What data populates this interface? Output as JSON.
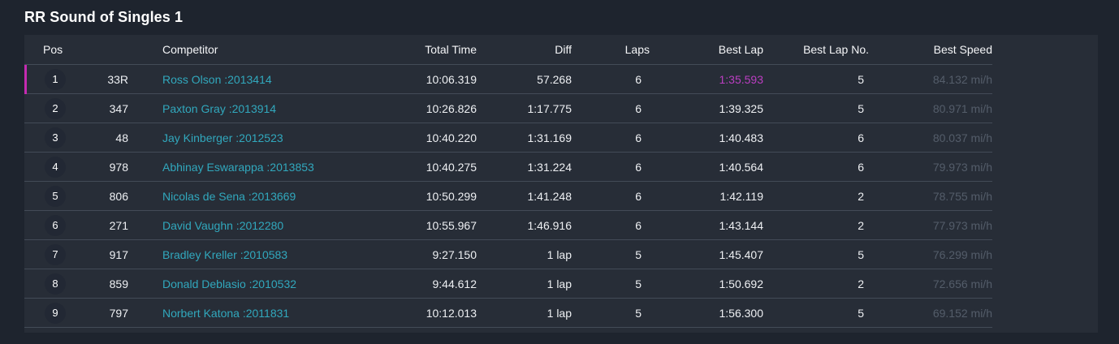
{
  "title": "RR Sound of Singles 1",
  "colors": {
    "page_background": "#1e242e",
    "panel_background": "#272d37",
    "row_divider": "#434b57",
    "leader_indicator": "#c52bb1",
    "best_lap_highlight": "#bb3ec2",
    "competitor_link": "#31a8bd",
    "muted_speed": "#545d6a"
  },
  "table": {
    "columns": [
      {
        "key": "pos",
        "label": "Pos"
      },
      {
        "key": "num",
        "label": ""
      },
      {
        "key": "competitor",
        "label": "Competitor"
      },
      {
        "key": "total_time",
        "label": "Total Time"
      },
      {
        "key": "diff",
        "label": "Diff"
      },
      {
        "key": "laps",
        "label": "Laps"
      },
      {
        "key": "best_lap",
        "label": "Best Lap"
      },
      {
        "key": "best_lap_no",
        "label": "Best Lap No."
      },
      {
        "key": "best_speed",
        "label": "Best Speed"
      }
    ],
    "rows": [
      {
        "pos": "1",
        "num": "33R",
        "competitor": "Ross Olson :2013414",
        "total_time": "10:06.319",
        "diff": "57.268",
        "laps": "6",
        "best_lap": "1:35.593",
        "best_lap_no": "5",
        "best_speed": "84.132 mi/h",
        "highlight": true
      },
      {
        "pos": "2",
        "num": "347",
        "competitor": "Paxton Gray :2013914",
        "total_time": "10:26.826",
        "diff": "1:17.775",
        "laps": "6",
        "best_lap": "1:39.325",
        "best_lap_no": "5",
        "best_speed": "80.971 mi/h",
        "highlight": false
      },
      {
        "pos": "3",
        "num": "48",
        "competitor": "Jay Kinberger :2012523",
        "total_time": "10:40.220",
        "diff": "1:31.169",
        "laps": "6",
        "best_lap": "1:40.483",
        "best_lap_no": "6",
        "best_speed": "80.037 mi/h",
        "highlight": false
      },
      {
        "pos": "4",
        "num": "978",
        "competitor": "Abhinay Eswarappa :2013853",
        "total_time": "10:40.275",
        "diff": "1:31.224",
        "laps": "6",
        "best_lap": "1:40.564",
        "best_lap_no": "6",
        "best_speed": "79.973 mi/h",
        "highlight": false
      },
      {
        "pos": "5",
        "num": "806",
        "competitor": "Nicolas de Sena :2013669",
        "total_time": "10:50.299",
        "diff": "1:41.248",
        "laps": "6",
        "best_lap": "1:42.119",
        "best_lap_no": "2",
        "best_speed": "78.755 mi/h",
        "highlight": false
      },
      {
        "pos": "6",
        "num": "271",
        "competitor": "David Vaughn :2012280",
        "total_time": "10:55.967",
        "diff": "1:46.916",
        "laps": "6",
        "best_lap": "1:43.144",
        "best_lap_no": "2",
        "best_speed": "77.973 mi/h",
        "highlight": false
      },
      {
        "pos": "7",
        "num": "917",
        "competitor": "Bradley Kreller :2010583",
        "total_time": "9:27.150",
        "diff": "1 lap",
        "laps": "5",
        "best_lap": "1:45.407",
        "best_lap_no": "5",
        "best_speed": "76.299 mi/h",
        "highlight": false
      },
      {
        "pos": "8",
        "num": "859",
        "competitor": "Donald Deblasio :2010532",
        "total_time": "9:44.612",
        "diff": "1 lap",
        "laps": "5",
        "best_lap": "1:50.692",
        "best_lap_no": "2",
        "best_speed": "72.656 mi/h",
        "highlight": false
      },
      {
        "pos": "9",
        "num": "797",
        "competitor": "Norbert Katona :2011831",
        "total_time": "10:12.013",
        "diff": "1 lap",
        "laps": "5",
        "best_lap": "1:56.300",
        "best_lap_no": "5",
        "best_speed": "69.152 mi/h",
        "highlight": false
      }
    ]
  }
}
